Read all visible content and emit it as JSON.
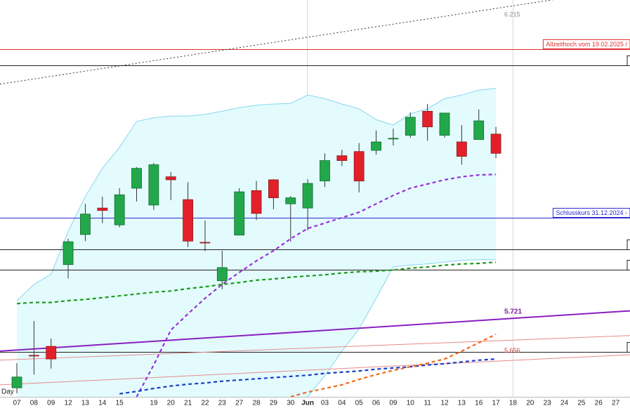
{
  "chart_data": {
    "type": "candlestick",
    "period": "Day",
    "categories": [
      "07",
      "08",
      "09",
      "12",
      "13",
      "14",
      "15",
      null,
      "19",
      "20",
      "21",
      "22",
      "23",
      "27",
      "28",
      "29",
      "30",
      "Jun",
      "03",
      "04",
      "05",
      "06",
      "09",
      "10",
      "11",
      "12",
      "13",
      "16",
      "17",
      "18",
      "20",
      "23",
      "24",
      "25",
      "26",
      "27"
    ],
    "open": [
      5.605,
      5.659,
      5.674,
      5.81,
      5.86,
      5.904,
      5.876,
      5.937,
      5.909,
      5.956,
      5.918,
      5.847,
      5.783,
      5.859,
      5.933,
      5.951,
      5.911,
      5.904,
      5.949,
      5.991,
      5.998,
      6.0,
      6.019,
      6.025,
      6.065,
      6.025,
      6.014,
      6.018,
      6.027,
      null,
      null,
      null,
      null,
      null,
      null,
      null
    ],
    "high": [
      5.646,
      5.716,
      5.687,
      5.853,
      5.911,
      5.923,
      5.937,
      5.972,
      5.979,
      5.964,
      5.947,
      5.883,
      5.833,
      5.937,
      5.949,
      5.952,
      5.924,
      5.952,
      5.995,
      6.001,
      6.012,
      6.033,
      6.036,
      6.063,
      6.077,
      6.062,
      6.042,
      6.068,
      6.039,
      null,
      null,
      null,
      null,
      null,
      null,
      null
    ],
    "low": [
      5.596,
      5.627,
      5.637,
      5.787,
      5.849,
      5.879,
      5.872,
      5.915,
      5.901,
      5.917,
      5.839,
      5.832,
      5.769,
      5.859,
      5.884,
      5.902,
      5.848,
      5.867,
      5.939,
      5.974,
      5.93,
      5.993,
      6.008,
      6.021,
      6.016,
      6.021,
      5.976,
      6.018,
      5.987,
      null,
      null,
      null,
      null,
      null,
      null,
      null
    ],
    "close": [
      5.623,
      5.658,
      5.653,
      5.848,
      5.894,
      5.9,
      5.926,
      5.97,
      5.976,
      5.951,
      5.849,
      5.846,
      5.805,
      5.931,
      5.895,
      5.921,
      5.921,
      5.945,
      5.983,
      5.983,
      5.949,
      6.014,
      6.02,
      6.055,
      6.039,
      6.062,
      5.99,
      6.049,
      5.995,
      null,
      null,
      null,
      null,
      null,
      null,
      null
    ],
    "up_color": "#22a84a",
    "down_color": "#e3202a",
    "ylim": [
      5.59,
      6.25
    ],
    "band": {
      "color": "#87d6f0",
      "fill": "#e3fbfd",
      "upper": [
        5.75,
        5.777,
        5.794,
        5.865,
        5.923,
        5.97,
        6.005,
        6.048,
        6.054,
        6.057,
        6.057,
        6.06,
        6.065,
        6.071,
        6.075,
        6.077,
        6.078,
        6.092,
        6.086,
        6.077,
        6.069,
        6.051,
        6.042,
        6.061,
        6.069,
        6.086,
        6.092,
        6.1,
        6.103,
        null,
        null,
        null,
        null,
        null,
        null,
        null
      ],
      "lower": [
        null,
        null,
        null,
        null,
        null,
        null,
        null,
        null,
        null,
        null,
        null,
        null,
        null,
        null,
        null,
        null,
        null,
        5.59,
        5.625,
        5.666,
        5.703,
        5.754,
        5.806,
        5.809,
        5.811,
        5.814,
        5.817,
        5.818,
        5.818,
        null,
        null,
        null,
        null,
        null,
        null,
        null
      ]
    },
    "lines": [
      {
        "color": "#9b30d9",
        "style": "dashed",
        "values": [
          null,
          null,
          null,
          null,
          null,
          null,
          null,
          5.59,
          5.643,
          5.701,
          5.728,
          5.754,
          5.777,
          5.797,
          5.816,
          5.833,
          5.853,
          5.87,
          5.879,
          5.888,
          5.897,
          5.911,
          5.925,
          5.937,
          5.944,
          5.951,
          5.956,
          5.959,
          5.96,
          null,
          null,
          null,
          null,
          null,
          null,
          null
        ]
      },
      {
        "color": "#1e9a1e",
        "style": "dashed",
        "values": [
          5.745,
          5.747,
          5.747,
          5.75,
          5.752,
          5.755,
          5.758,
          5.761,
          5.764,
          5.766,
          5.77,
          5.773,
          5.777,
          5.78,
          5.784,
          5.786,
          5.789,
          5.791,
          5.793,
          5.796,
          5.798,
          5.799,
          5.801,
          5.804,
          5.806,
          5.809,
          5.811,
          5.812,
          5.814,
          null,
          null,
          null,
          null,
          null,
          null,
          null
        ]
      },
      {
        "color": "#1a3fc4",
        "style": "dashed",
        "values": [
          null,
          null,
          null,
          null,
          null,
          null,
          5.595,
          5.599,
          5.604,
          5.608,
          5.611,
          5.613,
          5.616,
          5.618,
          5.62,
          5.622,
          5.624,
          5.626,
          5.629,
          5.631,
          5.633,
          5.636,
          5.638,
          5.64,
          5.643,
          5.645,
          5.648,
          5.651,
          5.653,
          null,
          null,
          null,
          null,
          null,
          null,
          null
        ]
      },
      {
        "color": "#f06a1c",
        "style": "dashed",
        "values": [
          null,
          null,
          null,
          null,
          null,
          null,
          null,
          null,
          null,
          null,
          null,
          null,
          null,
          null,
          null,
          null,
          5.59,
          5.598,
          5.604,
          5.61,
          5.619,
          5.627,
          5.634,
          5.64,
          5.646,
          5.653,
          5.666,
          5.68,
          5.694,
          null,
          null,
          null,
          null,
          null,
          null,
          null
        ]
      }
    ],
    "trendlines": [
      {
        "color": "#333333",
        "style": "dotted",
        "width": 1,
        "values": [
          6.11,
          6.27
        ]
      },
      {
        "color": "#8a1fc0",
        "style": "solid",
        "width": 2,
        "values": [
          5.666,
          5.733
        ]
      },
      {
        "color": "#e58a8a",
        "style": "solid",
        "width": 1,
        "values": [
          5.651,
          5.692
        ]
      },
      {
        "color": "#e58a8a",
        "style": "solid",
        "width": 1,
        "values": [
          5.61,
          5.66
        ]
      }
    ],
    "levels": [
      {
        "value": 6.168,
        "color": "#e03030",
        "label": "Allzeithoch vom 19.02.2025 /"
      },
      {
        "value": 6.141,
        "color": "#222222"
      },
      {
        "value": 5.888,
        "color": "#2a2ad0",
        "label": "Schlusskurs 31.12.2024 -"
      },
      {
        "value": 5.835,
        "color": "#222222"
      },
      {
        "value": 5.801,
        "color": "#222222"
      },
      {
        "value": 5.665,
        "color": "#222222"
      }
    ],
    "price_labels": [
      {
        "value": 6.215,
        "color": "#8a8a8a"
      },
      {
        "value": 5.721,
        "color": "#7b1fa2"
      },
      {
        "value": 5.656,
        "color": "#d04040"
      }
    ]
  }
}
